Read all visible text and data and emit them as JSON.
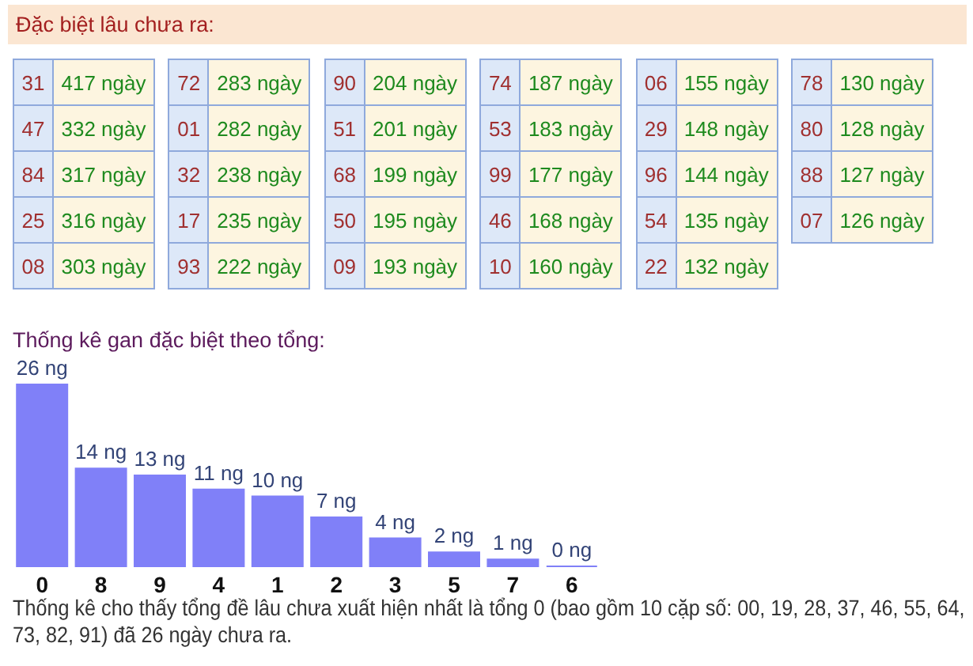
{
  "chart_data": [
    {
      "type": "other",
      "title": "Đặc biệt lâu chưa ra:",
      "annotations": [
        "31",
        "417 ngày",
        "47",
        "332 ngày",
        "84",
        "317 ngày",
        "25",
        "316 ngày",
        "08",
        "303 ngày",
        "72",
        "283 ngày",
        "01",
        "282 ngày",
        "32",
        "238 ngày",
        "17",
        "235 ngày",
        "93",
        "222 ngày",
        "90",
        "204 ngày",
        "51",
        "201 ngày",
        "68",
        "199 ngày",
        "50",
        "195 ngày",
        "09",
        "193 ngày",
        "74",
        "187 ngày",
        "53",
        "183 ngày",
        "99",
        "177 ngày",
        "46",
        "168 ngày",
        "10",
        "160 ngày",
        "06",
        "155 ngày",
        "29",
        "148 ngày",
        "96",
        "144 ngày",
        "54",
        "135 ngày",
        "22",
        "132 ngày",
        "78",
        "130 ngày",
        "80",
        "128 ngày",
        "88",
        "127 ngày",
        "07",
        "126 ngày"
      ]
    },
    {
      "type": "bar",
      "title": "Thống kê gan đặc biệt theo tổng:",
      "categories": [
        "0",
        "8",
        "9",
        "4",
        "1",
        "2",
        "3",
        "5",
        "7",
        "6"
      ],
      "values": [
        26,
        14,
        13,
        11,
        10,
        7,
        4,
        2,
        1,
        0
      ],
      "value_labels": [
        "26 ng",
        "14 ng",
        "13 ng",
        "11 ng",
        "10 ng",
        "7 ng",
        "4 ng",
        "2 ng",
        "1 ng",
        "0 ng"
      ],
      "color": "#8080f8",
      "annotations": [
        "Thống kê cho thấy tổng đề lâu chưa xuất hiện nhất là tổng 0 (bao gồm 10 cặp số: 00, 19, 28, 37, 46, 55, 64, 73, 82, 91) đã 26 ngày chưa ra."
      ]
    }
  ]
}
